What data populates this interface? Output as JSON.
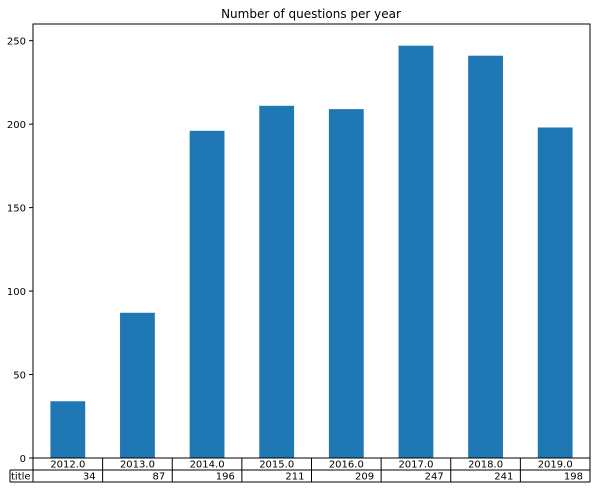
{
  "chart_data": {
    "type": "bar",
    "title": "Number of questions per year",
    "xlabel": "",
    "ylabel": "",
    "categories": [
      "2012.0",
      "2013.0",
      "2014.0",
      "2015.0",
      "2016.0",
      "2017.0",
      "2018.0",
      "2019.0"
    ],
    "series": [
      {
        "name": "title",
        "values": [
          34,
          87,
          196,
          211,
          209,
          247,
          241,
          198
        ]
      }
    ],
    "ylim": [
      0,
      260
    ],
    "yticks": [
      0,
      50,
      100,
      150,
      200,
      250
    ],
    "grid": false,
    "legend": "none",
    "bar_color": "#1f77b4",
    "table": {
      "row_label": "title",
      "columns": [
        "2012.0",
        "2013.0",
        "2014.0",
        "2015.0",
        "2016.0",
        "2017.0",
        "2018.0",
        "2019.0"
      ],
      "values": [
        "34",
        "87",
        "196",
        "211",
        "209",
        "247",
        "241",
        "198"
      ]
    }
  }
}
